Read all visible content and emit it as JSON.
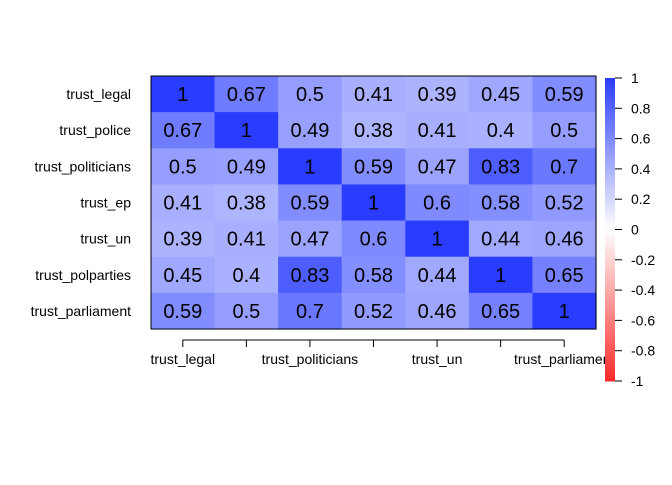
{
  "chart_data": {
    "type": "heatmap",
    "title": "",
    "row_labels": [
      "trust_legal",
      "trust_police",
      "trust_politicians",
      "trust_ep",
      "trust_un",
      "trust_polparties",
      "trust_parliament"
    ],
    "x_tick_labels": [
      "trust_legal",
      "trust_politicians",
      "trust_un",
      "trust_parliament"
    ],
    "x_tick_columns": [
      0,
      2,
      4,
      6
    ],
    "values": [
      [
        1,
        0.67,
        0.5,
        0.41,
        0.39,
        0.45,
        0.59
      ],
      [
        0.67,
        1,
        0.49,
        0.38,
        0.41,
        0.4,
        0.5
      ],
      [
        0.5,
        0.49,
        1,
        0.59,
        0.47,
        0.83,
        0.7
      ],
      [
        0.41,
        0.38,
        0.59,
        1,
        0.6,
        0.58,
        0.52
      ],
      [
        0.39,
        0.41,
        0.47,
        0.6,
        1,
        0.44,
        0.46
      ],
      [
        0.45,
        0.4,
        0.83,
        0.58,
        0.44,
        1,
        0.65
      ],
      [
        0.59,
        0.5,
        0.7,
        0.52,
        0.46,
        0.65,
        1
      ]
    ],
    "value_labels": [
      [
        "1",
        "0.67",
        "0.5",
        "0.41",
        "0.39",
        "0.45",
        "0.59"
      ],
      [
        "0.67",
        "1",
        "0.49",
        "0.38",
        "0.41",
        "0.4",
        "0.5"
      ],
      [
        "0.5",
        "0.49",
        "1",
        "0.59",
        "0.47",
        "0.83",
        "0.7"
      ],
      [
        "0.41",
        "0.38",
        "0.59",
        "1",
        "0.6",
        "0.58",
        "0.52"
      ],
      [
        "0.39",
        "0.41",
        "0.47",
        "0.6",
        "1",
        "0.44",
        "0.46"
      ],
      [
        "0.45",
        "0.4",
        "0.83",
        "0.58",
        "0.44",
        "1",
        "0.65"
      ],
      [
        "0.59",
        "0.5",
        "0.7",
        "0.52",
        "0.46",
        "0.65",
        "1"
      ]
    ],
    "color_scale": {
      "range": [
        -1,
        1
      ],
      "low_color": "#ff2a2a",
      "mid_color": "#ffffff",
      "high_color": "#2a3cff"
    },
    "legend": {
      "placement": "right",
      "tick_values": [
        1,
        0.8,
        0.6,
        0.4,
        0.2,
        0,
        -0.2,
        -0.4,
        -0.6,
        -0.8,
        -1
      ],
      "tick_labels": [
        "1",
        "0.8",
        "0.6",
        "0.4",
        "0.2",
        "0",
        "-0.2",
        "-0.4",
        "-0.6",
        "-0.8",
        "-1"
      ]
    },
    "grid": false
  }
}
